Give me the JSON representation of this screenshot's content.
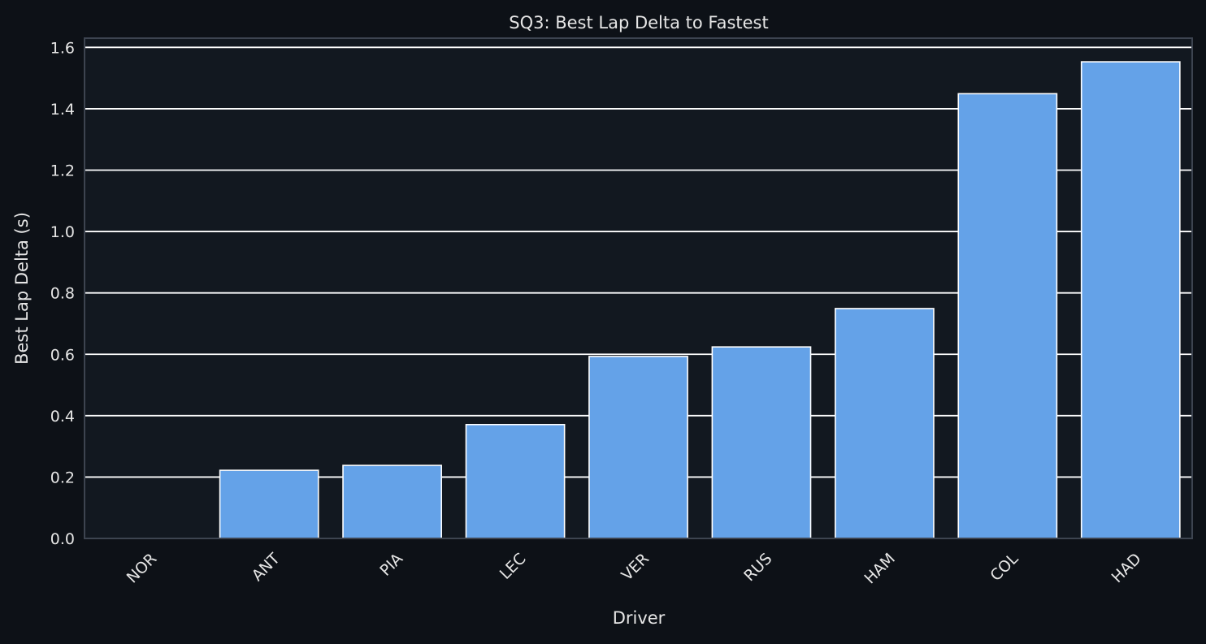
{
  "chart_data": {
    "type": "bar",
    "title": "SQ3: Best Lap Delta to Fastest",
    "xlabel": "Driver",
    "ylabel": "Best Lap Delta (s)",
    "categories": [
      "NOR",
      "ANT",
      "PIA",
      "LEC",
      "VER",
      "RUS",
      "HAM",
      "COL",
      "HAD"
    ],
    "values": [
      0.0,
      0.222,
      0.238,
      0.371,
      0.593,
      0.624,
      0.749,
      1.449,
      1.553
    ],
    "ylim": [
      0,
      1.63
    ],
    "yticks": [
      "0.0",
      "0.2",
      "0.4",
      "0.6",
      "0.8",
      "1.0",
      "1.2",
      "1.4",
      "1.6"
    ],
    "grid": true,
    "x_tick_rotation_deg": -45,
    "colors": {
      "page_background": "#0d1117",
      "plot_background": "#121820",
      "bar_fill": "#64a2e8",
      "bar_edge": "#ffffff",
      "grid": "#ffffff",
      "axes_spine": "#3d4450",
      "text": "#e6e6e6"
    }
  }
}
